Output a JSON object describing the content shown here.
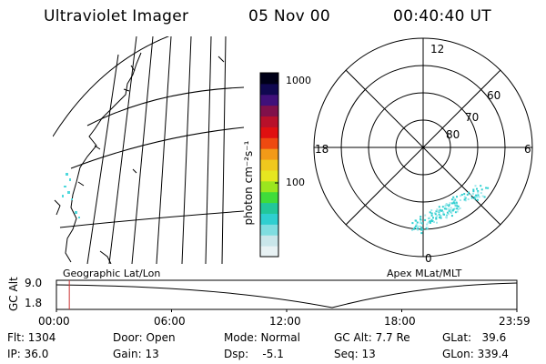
{
  "header": {
    "instrument": "Ultraviolet Imager",
    "date": "05 Nov 00",
    "time": "00:40:40 UT"
  },
  "colorbar": {
    "unit_label": "photon cm⁻²s⁻¹",
    "ticks": [
      "1000",
      "100"
    ],
    "ramp": [
      "#e8f2f4",
      "#c9e6ea",
      "#7fdde0",
      "#2fcfd0",
      "#22c79a",
      "#3fdc3a",
      "#9be61e",
      "#e6e620",
      "#f0c81e",
      "#f29a18",
      "#ee4a10",
      "#e01010",
      "#b8102a",
      "#80104a",
      "#40107a",
      "#100850",
      "#000018"
    ]
  },
  "polar": {
    "clock_labels": [
      "12",
      "18",
      "6",
      "0"
    ],
    "lat_labels": [
      "60",
      "70",
      "80"
    ]
  },
  "timeline": {
    "left_title": "Geographic Lat/Lon",
    "right_title": "Apex MLat/MLT",
    "axis_label": "GC Alt",
    "y_ticks": [
      "9.0",
      "1.8"
    ],
    "x_ticks": [
      "00:00",
      "06:00",
      "12:00",
      "18:00",
      "23:59"
    ],
    "current_time_fraction": 0.028,
    "marker_color": "#cc3333"
  },
  "status": {
    "flt": "Flt: 1304",
    "ip": "IP: 36.0",
    "door": "Door: Open",
    "gain": "Gain: 13",
    "mode": "Mode: Normal",
    "dsp": "Dsp:    -5.1",
    "gcalt": "GC Alt: 7.7 Re",
    "seq": "Seq: 13",
    "glat": "GLat:   39.6",
    "glon": "GLon: 339.4"
  }
}
